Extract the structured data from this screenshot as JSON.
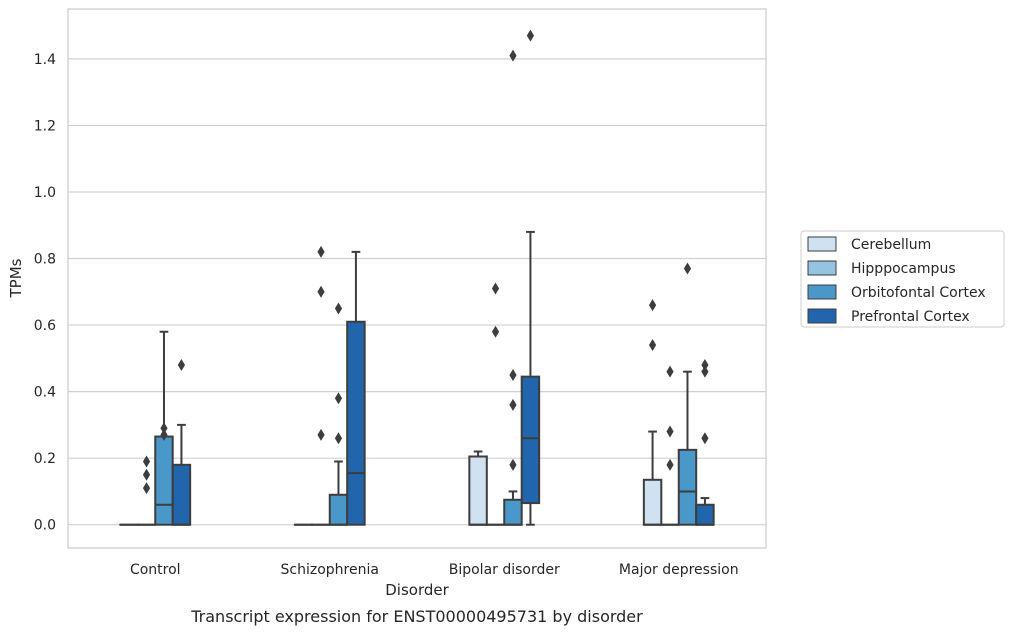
{
  "chart_data": {
    "type": "boxplot",
    "caption": "Transcript expression for ENST00000495731 by disorder",
    "xlabel": "Disorder",
    "ylabel": "TPMs",
    "ylim": [
      -0.07,
      1.55
    ],
    "yticks": [
      0.0,
      0.2,
      0.4,
      0.6,
      0.8,
      1.0,
      1.2,
      1.4
    ],
    "ytick_labels": [
      "0.0",
      "0.2",
      "0.4",
      "0.6",
      "0.8",
      "1.0",
      "1.2",
      "1.4"
    ],
    "grid": "horizontal",
    "legend_position": "right",
    "categories": [
      "Control",
      "Schizophrenia",
      "Bipolar disorder",
      "Major depression"
    ],
    "series": [
      {
        "name": "Cerebellum",
        "color": "#d0e1f2",
        "boxes": [
          {
            "q1": 0,
            "median": 0,
            "q3": 0,
            "whisker_low": 0,
            "whisker_high": 0,
            "outliers": []
          },
          {
            "q1": 0,
            "median": 0,
            "q3": 0,
            "whisker_low": 0,
            "whisker_high": 0,
            "outliers": []
          },
          {
            "q1": 0,
            "median": 0,
            "q3": 0.205,
            "whisker_low": 0,
            "whisker_high": 0.22,
            "outliers": []
          },
          {
            "q1": 0,
            "median": 0,
            "q3": 0.135,
            "whisker_low": 0,
            "whisker_high": 0.28,
            "outliers": [
              0.54,
              0.66
            ]
          }
        ]
      },
      {
        "name": "Hipppocampus",
        "color": "#94c4df",
        "boxes": [
          {
            "q1": 0,
            "median": 0,
            "q3": 0,
            "whisker_low": 0,
            "whisker_high": 0,
            "outliers": [
              0.11,
              0.15,
              0.19
            ]
          },
          {
            "q1": 0,
            "median": 0,
            "q3": 0,
            "whisker_low": 0,
            "whisker_high": 0,
            "outliers": [
              0.27,
              0.7,
              0.82
            ]
          },
          {
            "q1": 0,
            "median": 0,
            "q3": 0,
            "whisker_low": 0,
            "whisker_high": 0,
            "outliers": [
              0.58,
              0.71
            ]
          },
          {
            "q1": 0,
            "median": 0,
            "q3": 0,
            "whisker_low": 0,
            "whisker_high": 0,
            "outliers": [
              0.18,
              0.28,
              0.46
            ]
          }
        ]
      },
      {
        "name": "Orbitofontal Cortex",
        "color": "#4a98c9",
        "boxes": [
          {
            "q1": 0,
            "median": 0.06,
            "q3": 0.265,
            "whisker_low": 0,
            "whisker_high": 0.58,
            "outliers": [
              0.27,
              0.29
            ]
          },
          {
            "q1": 0,
            "median": 0,
            "q3": 0.09,
            "whisker_low": 0,
            "whisker_high": 0.19,
            "outliers": [
              0.26,
              0.38,
              0.65
            ]
          },
          {
            "q1": 0,
            "median": 0,
            "q3": 0.075,
            "whisker_low": 0,
            "whisker_high": 0.1,
            "outliers": [
              0.18,
              0.36,
              0.45,
              1.41
            ]
          },
          {
            "q1": 0,
            "median": 0.1,
            "q3": 0.225,
            "whisker_low": 0,
            "whisker_high": 0.46,
            "outliers": [
              0.77
            ]
          }
        ]
      },
      {
        "name": "Prefrontal Cortex",
        "color": "#2166ac",
        "boxes": [
          {
            "q1": 0,
            "median": 0,
            "q3": 0.18,
            "whisker_low": 0,
            "whisker_high": 0.3,
            "outliers": [
              0.48
            ]
          },
          {
            "q1": 0,
            "median": 0.155,
            "q3": 0.61,
            "whisker_low": 0,
            "whisker_high": 0.82,
            "outliers": []
          },
          {
            "q1": 0.065,
            "median": 0.26,
            "q3": 0.445,
            "whisker_low": 0,
            "whisker_high": 0.88,
            "outliers": [
              1.47
            ]
          },
          {
            "q1": 0,
            "median": 0,
            "q3": 0.06,
            "whisker_low": 0,
            "whisker_high": 0.08,
            "outliers": [
              0.26,
              0.46,
              0.48
            ]
          }
        ]
      }
    ]
  }
}
